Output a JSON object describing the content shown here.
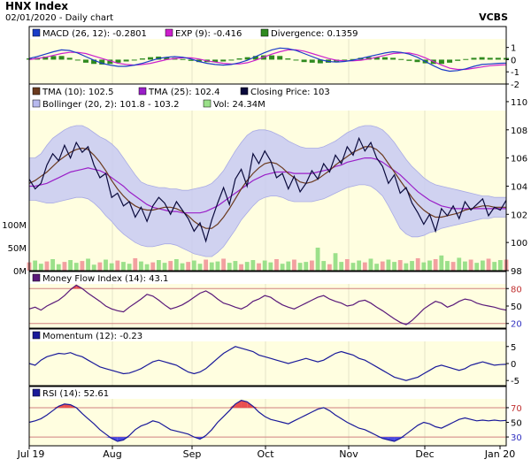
{
  "header": {
    "title": "HNX Index",
    "subtitle": "02/01/2020 - Daily chart",
    "brand": "VCBS"
  },
  "chart_data": [
    {
      "type": "line",
      "panel": "macd",
      "legend": [
        {
          "label": "MACD (26, 12): -0.2801",
          "color": "#1a3cc8"
        },
        {
          "label": "EXP (9): -0.416",
          "color": "#cc1fcc"
        },
        {
          "label": "Divergence: 0.1359",
          "color": "#2f8a1f"
        }
      ],
      "ylim": [
        -2,
        1.7
      ],
      "yticks": [
        "1",
        "0",
        "-1",
        "-2"
      ],
      "series": [
        {
          "name": "MACD",
          "values": [
            0.1,
            0.25,
            0.45,
            0.65,
            0.8,
            0.75,
            0.55,
            0.25,
            -0.05,
            -0.3,
            -0.45,
            -0.55,
            -0.55,
            -0.45,
            -0.3,
            -0.1,
            0.1,
            0.2,
            0.25,
            0.2,
            0.05,
            -0.15,
            -0.3,
            -0.4,
            -0.45,
            -0.4,
            -0.25,
            -0.05,
            0.25,
            0.55,
            0.8,
            0.95,
            0.9,
            0.75,
            0.5,
            0.25,
            0.0,
            -0.15,
            -0.2,
            -0.15,
            -0.05,
            0.1,
            0.25,
            0.4,
            0.55,
            0.65,
            0.6,
            0.45,
            0.2,
            -0.15,
            -0.5,
            -0.8,
            -0.95,
            -0.9,
            -0.75,
            -0.55,
            -0.4,
            -0.35,
            -0.3,
            -0.28
          ]
        },
        {
          "name": "EXP",
          "values": [
            0.0,
            0.1,
            0.2,
            0.35,
            0.5,
            0.6,
            0.6,
            0.5,
            0.3,
            0.1,
            -0.1,
            -0.3,
            -0.4,
            -0.45,
            -0.4,
            -0.3,
            -0.15,
            0.0,
            0.1,
            0.15,
            0.15,
            0.05,
            -0.1,
            -0.2,
            -0.3,
            -0.35,
            -0.35,
            -0.25,
            -0.05,
            0.2,
            0.45,
            0.65,
            0.8,
            0.8,
            0.7,
            0.5,
            0.3,
            0.1,
            -0.05,
            -0.1,
            -0.1,
            -0.05,
            0.05,
            0.2,
            0.35,
            0.5,
            0.55,
            0.55,
            0.4,
            0.15,
            -0.15,
            -0.45,
            -0.7,
            -0.8,
            -0.8,
            -0.7,
            -0.6,
            -0.5,
            -0.45,
            -0.42
          ]
        }
      ],
      "divergence": [
        0.1,
        0.15,
        0.25,
        0.3,
        0.3,
        0.15,
        -0.05,
        -0.25,
        -0.35,
        -0.4,
        -0.35,
        -0.25,
        -0.15,
        0.0,
        0.1,
        0.2,
        0.25,
        0.2,
        0.15,
        0.05,
        -0.1,
        -0.2,
        -0.2,
        -0.2,
        -0.15,
        -0.05,
        0.1,
        0.2,
        0.3,
        0.35,
        0.35,
        0.3,
        0.1,
        -0.05,
        -0.2,
        -0.25,
        -0.3,
        -0.25,
        -0.15,
        -0.05,
        0.05,
        0.15,
        0.2,
        0.2,
        0.2,
        0.15,
        0.05,
        -0.1,
        -0.2,
        -0.3,
        -0.35,
        -0.35,
        -0.25,
        -0.1,
        0.05,
        0.15,
        0.2,
        0.15,
        0.15,
        0.14
      ]
    },
    {
      "type": "line",
      "panel": "price",
      "legend": [
        {
          "label": "TMA (10): 102.5",
          "color": "#6b3a1e"
        },
        {
          "label": "TMA (25): 102.4",
          "color": "#9a1fc8"
        },
        {
          "label": "Closing Price: 103",
          "color": "#0a0a3c"
        },
        {
          "label": "Bollinger (20, 2): 101.8 - 103.2",
          "color": "#b7b9ee"
        },
        {
          "label": "Vol: 24.34M",
          "color": "#9be08a"
        }
      ],
      "ylim": [
        98,
        111
      ],
      "yticks": [
        "110",
        "108",
        "106",
        "104",
        "102",
        "100",
        "98"
      ],
      "vol_ticks": [
        "100M",
        "50M",
        "0M"
      ],
      "series": [
        {
          "name": "Closing Price",
          "values": [
            104.5,
            103.8,
            104.2,
            105.5,
            106.3,
            105.8,
            106.9,
            106.0,
            107.1,
            106.4,
            106.8,
            105.5,
            104.6,
            104.9,
            103.2,
            103.5,
            102.6,
            102.9,
            101.8,
            102.5,
            101.5,
            102.6,
            103.2,
            102.8,
            102.0,
            102.9,
            102.3,
            101.7,
            100.8,
            101.4,
            100.1,
            101.6,
            102.8,
            103.9,
            102.7,
            104.5,
            105.2,
            104.0,
            106.3,
            105.6,
            106.5,
            105.8,
            104.6,
            104.9,
            103.8,
            104.7,
            103.6,
            104.2,
            105.1,
            104.5,
            105.6,
            105.0,
            106.2,
            105.6,
            106.8,
            106.2,
            107.4,
            106.5,
            107.1,
            106.0,
            105.4,
            104.2,
            104.8,
            103.5,
            103.9,
            102.8,
            102.1,
            101.3,
            102.0,
            100.8,
            102.4,
            101.9,
            102.6,
            101.7,
            102.9,
            102.3,
            102.7,
            103.1,
            101.9,
            102.5,
            102.3,
            103.0
          ]
        },
        {
          "name": "TMA (10)",
          "values": [
            104.2,
            104.4,
            104.7,
            105.0,
            105.4,
            105.8,
            106.1,
            106.4,
            106.6,
            106.7,
            106.6,
            106.2,
            105.7,
            105.1,
            104.4,
            103.8,
            103.3,
            102.9,
            102.6,
            102.4,
            102.3,
            102.3,
            102.4,
            102.5,
            102.5,
            102.4,
            102.2,
            101.9,
            101.5,
            101.2,
            101.0,
            101.0,
            101.3,
            101.8,
            102.4,
            103.1,
            103.8,
            104.4,
            104.9,
            105.3,
            105.6,
            105.7,
            105.6,
            105.3,
            104.9,
            104.6,
            104.3,
            104.2,
            104.3,
            104.5,
            104.8,
            105.1,
            105.5,
            105.8,
            106.1,
            106.4,
            106.6,
            106.8,
            106.8,
            106.6,
            106.2,
            105.6,
            105.0,
            104.4,
            103.8,
            103.2,
            102.7,
            102.3,
            102.0,
            101.8,
            101.8,
            101.9,
            102.0,
            102.1,
            102.3,
            102.4,
            102.5,
            102.6,
            102.6,
            102.5,
            102.5,
            102.5
          ]
        },
        {
          "name": "TMA (25)",
          "values": [
            104.0,
            104.0,
            104.1,
            104.2,
            104.4,
            104.6,
            104.8,
            105.0,
            105.1,
            105.2,
            105.3,
            105.2,
            105.1,
            104.9,
            104.6,
            104.3,
            104.0,
            103.6,
            103.3,
            103.0,
            102.7,
            102.5,
            102.4,
            102.3,
            102.2,
            102.2,
            102.1,
            102.1,
            102.1,
            102.1,
            102.2,
            102.4,
            102.6,
            102.9,
            103.2,
            103.5,
            103.8,
            104.1,
            104.4,
            104.6,
            104.8,
            104.9,
            105.0,
            105.0,
            105.0,
            104.9,
            104.9,
            104.9,
            104.9,
            105.0,
            105.1,
            105.2,
            105.4,
            105.5,
            105.7,
            105.8,
            105.9,
            106.0,
            106.0,
            105.9,
            105.7,
            105.4,
            105.1,
            104.8,
            104.4,
            104.0,
            103.6,
            103.3,
            103.0,
            102.8,
            102.6,
            102.5,
            102.4,
            102.4,
            102.4,
            102.4,
            102.4,
            102.4,
            102.4,
            102.4,
            102.4,
            102.4
          ]
        },
        {
          "name": "Bollinger Upper",
          "values": [
            106.0,
            106.0,
            106.3,
            106.9,
            107.4,
            107.7,
            108.0,
            108.2,
            108.3,
            108.3,
            108.1,
            107.8,
            107.5,
            107.3,
            107.0,
            106.6,
            106.0,
            105.4,
            104.8,
            104.3,
            104.1,
            104.0,
            103.9,
            103.9,
            103.8,
            103.8,
            103.7,
            103.7,
            103.8,
            103.9,
            104.0,
            104.2,
            104.6,
            105.1,
            105.8,
            106.5,
            107.1,
            107.6,
            107.9,
            108.0,
            108.0,
            107.9,
            107.7,
            107.5,
            107.2,
            107.0,
            106.8,
            106.7,
            106.7,
            106.7,
            106.8,
            107.0,
            107.2,
            107.5,
            107.8,
            108.0,
            108.2,
            108.3,
            108.3,
            108.2,
            108.0,
            107.6,
            107.1,
            106.5,
            105.9,
            105.4,
            105.0,
            104.6,
            104.3,
            104.1,
            104.0,
            103.9,
            103.8,
            103.7,
            103.6,
            103.5,
            103.4,
            103.3,
            103.3,
            103.2,
            103.2,
            103.2
          ]
        },
        {
          "name": "Bollinger Lower",
          "values": [
            103.0,
            103.0,
            102.9,
            102.8,
            102.8,
            102.9,
            103.0,
            103.1,
            103.2,
            103.2,
            103.1,
            102.8,
            102.4,
            101.9,
            101.5,
            101.0,
            100.6,
            100.3,
            100.0,
            99.8,
            99.7,
            99.7,
            99.8,
            99.9,
            99.9,
            99.8,
            99.6,
            99.4,
            99.2,
            99.1,
            99.0,
            99.0,
            99.3,
            99.7,
            100.3,
            100.9,
            101.6,
            102.1,
            102.6,
            103.0,
            103.2,
            103.3,
            103.3,
            103.2,
            103.0,
            102.9,
            102.9,
            102.9,
            102.9,
            103.0,
            103.1,
            103.3,
            103.5,
            103.7,
            103.9,
            104.0,
            104.1,
            104.1,
            104.0,
            103.7,
            103.3,
            102.6,
            101.8,
            101.0,
            100.6,
            100.4,
            100.4,
            100.5,
            100.7,
            100.8,
            101.0,
            101.1,
            101.2,
            101.3,
            101.4,
            101.5,
            101.6,
            101.7,
            101.7,
            101.8,
            101.8,
            101.8
          ]
        }
      ],
      "volume": [
        18,
        22,
        15,
        20,
        25,
        14,
        19,
        23,
        17,
        21,
        26,
        13,
        18,
        24,
        16,
        22,
        19,
        15,
        27,
        20,
        14,
        18,
        23,
        17,
        21,
        25,
        16,
        19,
        22,
        15,
        24,
        18,
        20,
        26,
        17,
        21,
        14,
        19,
        23,
        16,
        22,
        18,
        25,
        15,
        20,
        24,
        17,
        19,
        22,
        50,
        21,
        14,
        38,
        19,
        25,
        17,
        22,
        18,
        26,
        15,
        20,
        24,
        19,
        23,
        16,
        21,
        27,
        18,
        22,
        25,
        33,
        21,
        19,
        28,
        20,
        24,
        17,
        22,
        26,
        19,
        23,
        24
      ]
    },
    {
      "type": "line",
      "panel": "mfi",
      "legend": [
        {
          "label": "Money Flow Index (14): 43.1",
          "color": "#5a1a7a"
        }
      ],
      "ylim": [
        12,
        88
      ],
      "yticks": [
        "80",
        "50",
        "20"
      ],
      "series": [
        {
          "name": "Money Flow Index",
          "values": [
            45,
            48,
            43,
            50,
            55,
            60,
            68,
            78,
            86,
            80,
            72,
            65,
            58,
            50,
            45,
            42,
            40,
            48,
            55,
            62,
            70,
            67,
            60,
            52,
            45,
            48,
            52,
            58,
            65,
            72,
            76,
            70,
            62,
            55,
            52,
            48,
            45,
            50,
            58,
            62,
            68,
            65,
            58,
            52,
            48,
            45,
            50,
            55,
            60,
            65,
            68,
            62,
            58,
            55,
            50,
            52,
            58,
            60,
            55,
            48,
            42,
            35,
            28,
            22,
            18,
            25,
            35,
            45,
            52,
            58,
            55,
            48,
            52,
            58,
            62,
            60,
            55,
            52,
            50,
            48,
            45,
            43
          ]
        }
      ]
    },
    {
      "type": "line",
      "panel": "momentum",
      "legend": [
        {
          "label": "Momentum (12): -0.23",
          "color": "#1a1a9a"
        }
      ],
      "ylim": [
        -6.5,
        6.5
      ],
      "yticks": [
        "5",
        "0",
        "-5"
      ],
      "series": [
        {
          "name": "Momentum",
          "values": [
            0,
            -0.5,
            1,
            2,
            2.5,
            3,
            2.8,
            3.2,
            2.5,
            2,
            1,
            0,
            -1,
            -1.5,
            -2,
            -2.5,
            -3,
            -2.8,
            -2.2,
            -1.5,
            -0.5,
            0.5,
            1,
            0.5,
            0,
            -0.5,
            -1.5,
            -2.5,
            -3,
            -2.5,
            -1.5,
            0,
            1.5,
            3,
            4,
            5,
            4.5,
            4,
            3.5,
            2.5,
            2,
            1.5,
            1,
            0.5,
            0,
            0.5,
            1,
            1.5,
            1,
            0.5,
            1,
            2,
            3,
            3.5,
            3,
            2.5,
            1.5,
            1,
            0,
            -1,
            -2,
            -3,
            -4,
            -4.5,
            -5,
            -4.5,
            -4,
            -3,
            -2,
            -1,
            -0.5,
            -1,
            -1.5,
            -2,
            -1.5,
            -0.5,
            0,
            0.5,
            0,
            -0.5,
            -0.3,
            -0.23
          ]
        }
      ]
    },
    {
      "type": "line",
      "panel": "rsi",
      "legend": [
        {
          "label": "RSI (14): 52.61",
          "color": "#1a1a9a"
        }
      ],
      "ylim": [
        18,
        82
      ],
      "yticks": [
        "70",
        "50",
        "30"
      ],
      "xticks": [
        "Jul 19",
        "Aug",
        "Sep",
        "Oct",
        "Nov",
        "Dec",
        "Jan 20"
      ],
      "series": [
        {
          "name": "RSI",
          "values": [
            50,
            52,
            55,
            60,
            66,
            72,
            75,
            74,
            70,
            62,
            55,
            48,
            40,
            34,
            28,
            24,
            26,
            32,
            40,
            45,
            48,
            52,
            50,
            45,
            40,
            38,
            36,
            34,
            30,
            27,
            32,
            40,
            50,
            58,
            66,
            75,
            80,
            78,
            72,
            64,
            58,
            54,
            52,
            50,
            48,
            52,
            56,
            60,
            64,
            68,
            70,
            66,
            60,
            55,
            50,
            46,
            42,
            40,
            36,
            32,
            28,
            26,
            24,
            28,
            34,
            40,
            46,
            50,
            48,
            44,
            42,
            46,
            50,
            54,
            56,
            54,
            52,
            53,
            52,
            53,
            52,
            52.6
          ]
        }
      ]
    }
  ]
}
